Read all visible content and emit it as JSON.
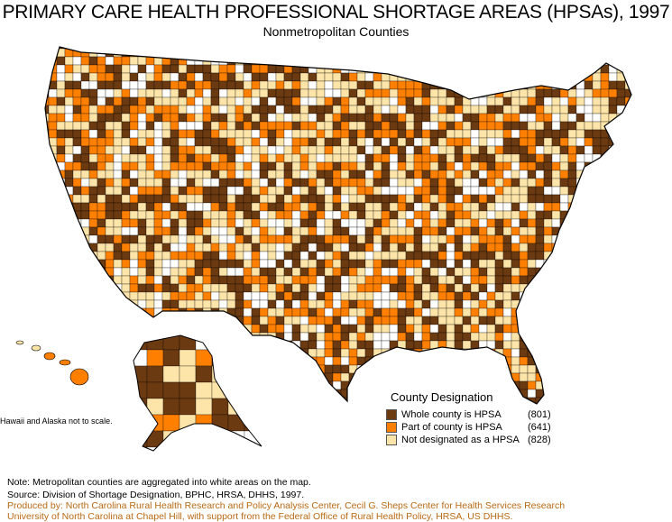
{
  "title": "PRIMARY CARE HEALTH PROFESSIONAL SHORTAGE AREAS (HPSAs), 1997",
  "subtitle": "Nonmetropolitan  Counties",
  "colors": {
    "whole": "#6b3a10",
    "part": "#ff8000",
    "not": "#fde4a8",
    "metro": "#ffffff"
  },
  "legend": {
    "title": "County Designation",
    "items": [
      {
        "label": "Whole county is HPSA",
        "count": "(801)"
      },
      {
        "label": "Part of county is HPSA",
        "count": "(641)"
      },
      {
        "label": "Not designated as a HPSA",
        "count": "(828)"
      }
    ]
  },
  "scale_note": "Hawaii and Alaska not to scale.",
  "footer": {
    "note": "Note: Metropolitan counties are aggregated into white areas on the map.",
    "source": "Source: Division of Shortage Designation, BPHC, HRSA, DHHS, 1997.",
    "produced1": "Produced by: North Carolina Rural Health Research and Policy Analysis Center, Cecil G. Sheps Center for Health Services Research",
    "produced2": "University of North Carolina at Chapel Hill, with support from the Federal Office of Rural Health Policy, HRSA, US DHHS."
  }
}
